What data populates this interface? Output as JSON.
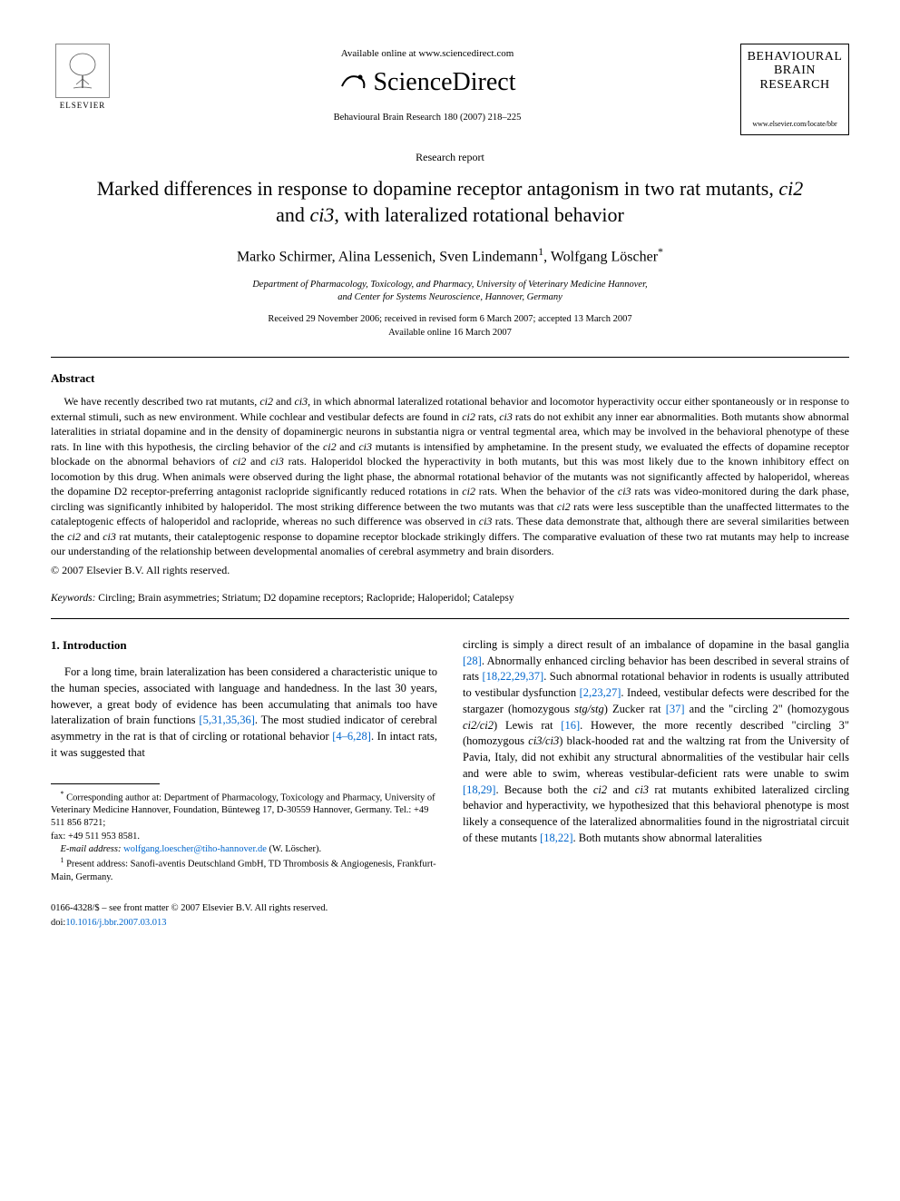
{
  "header": {
    "elsevier_label": "ELSEVIER",
    "available_online": "Available online at www.sciencedirect.com",
    "sciencedirect_name": "ScienceDirect",
    "journal_ref": "Behavioural Brain Research 180 (2007) 218–225",
    "journal_cover_title_1": "BEHAVIOURAL",
    "journal_cover_title_2": "BRAIN",
    "journal_cover_title_3": "RESEARCH",
    "journal_cover_url": "www.elsevier.com/locate/bbr"
  },
  "article": {
    "type": "Research report",
    "title_pre": "Marked differences in response to dopamine receptor antagonism in two rat mutants, ",
    "title_i1": "ci2",
    "title_mid": " and ",
    "title_i2": "ci3",
    "title_post": ", with lateralized rotational behavior",
    "authors": "Marko Schirmer, Alina Lessenich, Sven Lindemann",
    "author_sup1": "1",
    "author_last": ", Wolfgang Löscher",
    "author_sup2": "*",
    "affiliation_1": "Department of Pharmacology, Toxicology, and Pharmacy, University of Veterinary Medicine Hannover,",
    "affiliation_2": "and Center for Systems Neuroscience, Hannover, Germany",
    "dates_1": "Received 29 November 2006; received in revised form 6 March 2007; accepted 13 March 2007",
    "dates_2": "Available online 16 March 2007"
  },
  "abstract": {
    "heading": "Abstract",
    "text": "We have recently described two rat mutants, ci2 and ci3, in which abnormal lateralized rotational behavior and locomotor hyperactivity occur either spontaneously or in response to external stimuli, such as new environment. While cochlear and vestibular defects are found in ci2 rats, ci3 rats do not exhibit any inner ear abnormalities. Both mutants show abnormal lateralities in striatal dopamine and in the density of dopaminergic neurons in substantia nigra or ventral tegmental area, which may be involved in the behavioral phenotype of these rats. In line with this hypothesis, the circling behavior of the ci2 and ci3 mutants is intensified by amphetamine. In the present study, we evaluated the effects of dopamine receptor blockade on the abnormal behaviors of ci2 and ci3 rats. Haloperidol blocked the hyperactivity in both mutants, but this was most likely due to the known inhibitory effect on locomotion by this drug. When animals were observed during the light phase, the abnormal rotational behavior of the mutants was not significantly affected by haloperidol, whereas the dopamine D2 receptor-preferring antagonist raclopride significantly reduced rotations in ci2 rats. When the behavior of the ci3 rats was video-monitored during the dark phase, circling was significantly inhibited by haloperidol. The most striking difference between the two mutants was that ci2 rats were less susceptible than the unaffected littermates to the cataleptogenic effects of haloperidol and raclopride, whereas no such difference was observed in ci3 rats. These data demonstrate that, although there are several similarities between the ci2 and ci3 rat mutants, their cataleptogenic response to dopamine receptor blockade strikingly differs. The comparative evaluation of these two rat mutants may help to increase our understanding of the relationship between developmental anomalies of cerebral asymmetry and brain disorders.",
    "copyright": "© 2007 Elsevier B.V. All rights reserved.",
    "keywords_label": "Keywords:",
    "keywords": "Circling; Brain asymmetries; Striatum; D2 dopamine receptors; Raclopride; Haloperidol; Catalepsy"
  },
  "intro": {
    "heading": "1.  Introduction",
    "col1": "For a long time, brain lateralization has been considered a characteristic unique to the human species, associated with language and handedness. In the last 30 years, however, a great body of evidence has been accumulating that animals too have lateralization of brain functions [5,31,35,36]. The most studied indicator of cerebral asymmetry in the rat is that of circling or rotational behavior [4–6,28]. In intact rats, it was suggested that",
    "col2": "circling is simply a direct result of an imbalance of dopamine in the basal ganglia [28]. Abnormally enhanced circling behavior has been described in several strains of rats [18,22,29,37]. Such abnormal rotational behavior in rodents is usually attributed to vestibular dysfunction [2,23,27]. Indeed, vestibular defects were described for the stargazer (homozygous stg/stg) Zucker rat [37] and the \"circling 2\" (homozygous ci2/ci2) Lewis rat [16]. However, the more recently described \"circling 3\" (homozygous ci3/ci3) black-hooded rat and the waltzing rat from the University of Pavia, Italy, did not exhibit any structural abnormalities of the vestibular hair cells and were able to swim, whereas vestibular-deficient rats were unable to swim [18,29]. Because both the ci2 and ci3 rat mutants exhibited lateralized circling behavior and hyperactivity, we hypothesized that this behavioral phenotype is most likely a consequence of the lateralized abnormalities found in the nigrostriatal circuit of these mutants [18,22]. Both mutants show abnormal lateralities"
  },
  "footnotes": {
    "corr_label": "*",
    "corr_text": " Corresponding author at: Department of Pharmacology, Toxicology and Pharmacy, University of Veterinary Medicine Hannover, Foundation, Bünteweg 17, D-30559 Hannover, Germany. Tel.: +49 511 856 8721;",
    "fax": "fax: +49 511 953 8581.",
    "email_label": "E-mail address:",
    "email": "wolfgang.loescher@tiho-hannover.de",
    "email_after": " (W. Löscher).",
    "fn1_label": "1",
    "fn1_text": " Present address: Sanofi-aventis Deutschland GmbH, TD Thrombosis & Angiogenesis, Frankfurt-Main, Germany."
  },
  "bottom": {
    "front_matter": "0166-4328/$ – see front matter © 2007 Elsevier B.V. All rights reserved.",
    "doi_label": "doi:",
    "doi": "10.1016/j.bbr.2007.03.013"
  },
  "colors": {
    "link": "#0066cc",
    "text": "#000000",
    "rule": "#000000"
  }
}
